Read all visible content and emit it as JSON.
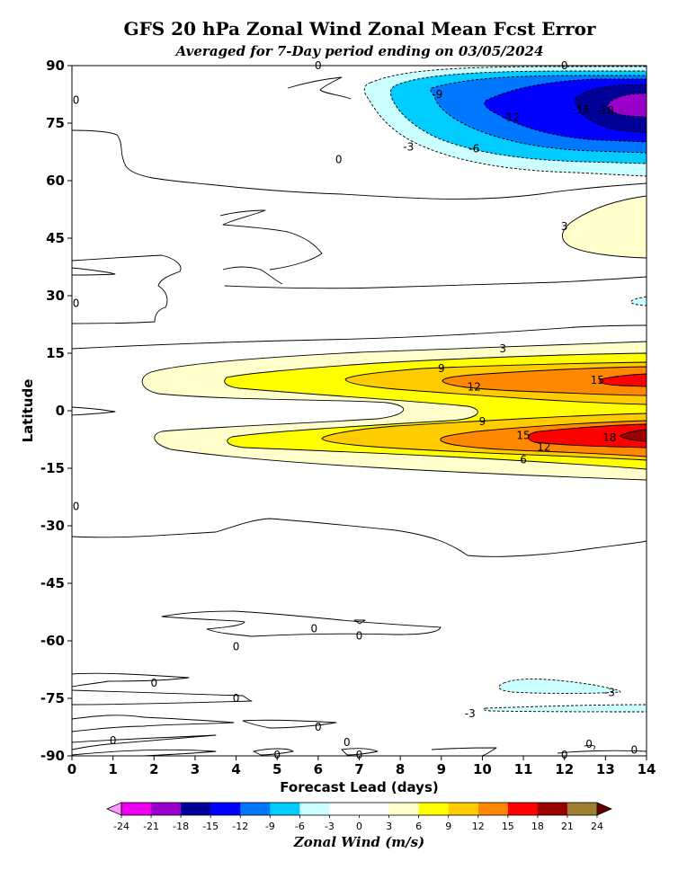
{
  "title": "GFS 20 hPa Zonal Wind Zonal Mean Fcst Error",
  "subtitle": "Averaged for 7-Day period ending on 03/05/2024",
  "colorbar_label": "Zonal Wind (m/s)",
  "chart_data": {
    "type": "contour",
    "xlabel": "Forecast Lead (days)",
    "ylabel": "Latitude",
    "xlim": [
      0,
      14
    ],
    "ylim": [
      -90,
      90
    ],
    "xticks": [
      0,
      1,
      2,
      3,
      4,
      5,
      6,
      7,
      8,
      9,
      10,
      11,
      12,
      13,
      14
    ],
    "yticks": [
      90,
      75,
      60,
      45,
      30,
      15,
      0,
      -15,
      -30,
      -45,
      -60,
      -75,
      -90
    ],
    "colorbar": {
      "levels": [
        -24,
        -21,
        -18,
        -15,
        -12,
        -9,
        -6,
        -3,
        0,
        3,
        6,
        9,
        12,
        15,
        18,
        21,
        24
      ],
      "colors": [
        "#ee00ee",
        "#9900cc",
        "#000099",
        "#0000ff",
        "#0077ff",
        "#00ccff",
        "#ccffff",
        "#ffffff",
        "#ffffff",
        "#ffffcc",
        "#ffff00",
        "#ffcc00",
        "#ff8800",
        "#ff0000",
        "#990000",
        "#a07f30"
      ],
      "under_color": "#ff99ff",
      "over_color": "#660000"
    },
    "contour_labels": [
      {
        "value": "0",
        "x": 6.0,
        "y": 90.0
      },
      {
        "value": "0",
        "x": 12.0,
        "y": 90.0
      },
      {
        "value": "-9",
        "x": 8.9,
        "y": 82.5
      },
      {
        "value": "-12",
        "x": 10.7,
        "y": 76.5
      },
      {
        "value": "-15",
        "x": 12.4,
        "y": 78.5
      },
      {
        "value": "-18",
        "x": 13.0,
        "y": 78.3
      },
      {
        "value": "-3",
        "x": 8.2,
        "y": 68.8
      },
      {
        "value": "-6",
        "x": 9.8,
        "y": 68.3
      },
      {
        "value": "0",
        "x": 6.5,
        "y": 65.5
      },
      {
        "value": "3",
        "x": 12.0,
        "y": 48.0
      },
      {
        "value": "0",
        "x": 0.1,
        "y": 81.0
      },
      {
        "value": "0",
        "x": 0.1,
        "y": 28.0
      },
      {
        "value": "3",
        "x": 10.5,
        "y": 16.2
      },
      {
        "value": "9",
        "x": 9.0,
        "y": 11.0
      },
      {
        "value": "12",
        "x": 9.8,
        "y": 6.2
      },
      {
        "value": "15",
        "x": 12.8,
        "y": 8.0
      },
      {
        "value": "9",
        "x": 10.0,
        "y": -2.8
      },
      {
        "value": "15",
        "x": 11.0,
        "y": -6.5
      },
      {
        "value": "12",
        "x": 11.5,
        "y": -9.5
      },
      {
        "value": "18",
        "x": 13.1,
        "y": -7.0
      },
      {
        "value": "6",
        "x": 11.0,
        "y": -12.8
      },
      {
        "value": "0",
        "x": 0.1,
        "y": -25.0
      },
      {
        "value": "0",
        "x": 5.9,
        "y": -56.8
      },
      {
        "value": "0",
        "x": 7.0,
        "y": -58.7
      },
      {
        "value": "0",
        "x": 4.0,
        "y": -61.5
      },
      {
        "value": "0",
        "x": 2.0,
        "y": -71.0
      },
      {
        "value": "0",
        "x": 4.0,
        "y": -75.0
      },
      {
        "value": "-3",
        "x": 13.1,
        "y": -73.5
      },
      {
        "value": "-3",
        "x": 9.7,
        "y": -79.0
      },
      {
        "value": "0",
        "x": 6.0,
        "y": -82.5
      },
      {
        "value": "0",
        "x": 1.0,
        "y": -86.0
      },
      {
        "value": "0",
        "x": 6.7,
        "y": -86.5
      },
      {
        "value": "0",
        "x": 5.0,
        "y": -89.8
      },
      {
        "value": "0",
        "x": 7.0,
        "y": -89.8
      },
      {
        "value": "0",
        "x": 12.0,
        "y": -89.8
      },
      {
        "value": "0",
        "x": 12.6,
        "y": -87.0
      },
      {
        "value": "0",
        "x": 13.7,
        "y": -88.5
      }
    ]
  }
}
